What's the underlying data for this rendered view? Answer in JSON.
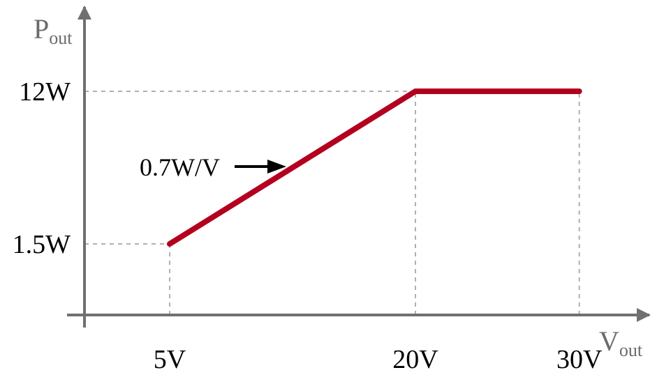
{
  "chart_data": {
    "type": "line",
    "series": [
      {
        "x": [
          5,
          20,
          30
        ],
        "y": [
          1.5,
          12,
          12
        ],
        "color": "#b3001f"
      }
    ],
    "x_ticks": [
      {
        "value": 5,
        "label": "5V"
      },
      {
        "value": 20,
        "label": "20V"
      },
      {
        "value": 30,
        "label": "30V"
      }
    ],
    "y_ticks": [
      {
        "value": 1.5,
        "label": "1.5W"
      },
      {
        "value": 12,
        "label": "12W"
      }
    ],
    "xlabel": {
      "main": "V",
      "sub": "out"
    },
    "ylabel": {
      "main": "P",
      "sub": "out"
    },
    "annotation": {
      "text": "0.7W/V",
      "points_to": {
        "x": 12,
        "y": 6.4
      }
    },
    "grid": "dashed guides at data points",
    "colors": {
      "line": "#b3001f",
      "axis": "#707070",
      "guide": "#b0b0b0"
    }
  }
}
